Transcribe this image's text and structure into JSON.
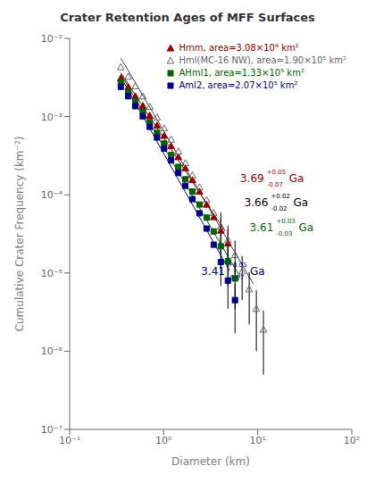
{
  "chart_data": {
    "type": "scatter",
    "title": "Crater Retention Ages of MFF Surfaces",
    "x_label": "Diameter (km)",
    "y_label": "Cumulative Crater Frequency (km⁻²)",
    "log": true,
    "grid": false,
    "legend": "upper right",
    "xlim": [
      0.1,
      100
    ],
    "ylim": [
      1e-07,
      0.01
    ],
    "xticks": [
      {
        "value": 0.1,
        "label": "10⁻¹"
      },
      {
        "value": 1,
        "label": "10⁰"
      },
      {
        "value": 10,
        "label": "10¹"
      },
      {
        "value": 100,
        "label": "10²"
      }
    ],
    "yticks": [
      {
        "value": 1e-07,
        "label": "10⁻⁷"
      },
      {
        "value": 1e-06,
        "label": "10⁻⁶"
      },
      {
        "value": 1e-05,
        "label": "10⁻⁵"
      },
      {
        "value": 0.0001,
        "label": "10⁻⁴"
      },
      {
        "value": 0.001,
        "label": "10⁻³"
      },
      {
        "value": 0.01,
        "label": "10⁻²"
      }
    ],
    "series": [
      {
        "name": "Hmm, area=3.08×10⁴ km²",
        "color": "#990000",
        "marker": "triangle",
        "x": [
          0.35,
          0.42,
          0.5,
          0.6,
          0.71,
          0.85,
          1.01,
          1.2,
          1.43,
          1.7,
          2.02,
          2.4,
          2.86,
          3.4,
          4.05,
          4.82
        ],
        "values": [
          0.0031,
          0.0024,
          0.00182,
          0.00138,
          0.00103,
          0.00077,
          0.00057,
          0.00042,
          0.000305,
          0.00022,
          0.000155,
          0.00011,
          7.5e-05,
          5.2e-05,
          3.5e-05,
          2.4e-05
        ],
        "error_low": [
          null,
          null,
          null,
          null,
          null,
          null,
          null,
          null,
          null,
          null,
          null,
          null,
          null,
          null,
          1.7e-05,
          1.2e-05
        ],
        "error_high": [
          null,
          null,
          null,
          null,
          null,
          null,
          null,
          null,
          null,
          null,
          null,
          null,
          null,
          null,
          1.7e-05,
          1.2e-05
        ],
        "fit": {
          "x": [
            0.35,
            4.5
          ],
          "y": [
            0.003626,
            3.406e-05
          ],
          "color": "#990000"
        },
        "annotation": {
          "text": "3.69",
          "sup": "+0.05",
          "sub": "-0.07",
          "unit": "Ga",
          "x": 6.5,
          "y": 0.00016,
          "color": "#990000"
        }
      },
      {
        "name": "Hml(MC-16 NW), area=1.90×10⁵ km²",
        "color": "#666666",
        "marker": "triangle-open",
        "x": [
          0.35,
          0.42,
          0.5,
          0.6,
          0.71,
          0.85,
          1.01,
          1.2,
          1.43,
          1.7,
          2.02,
          2.4,
          2.86,
          3.4,
          4.05,
          4.82,
          5.73,
          6.82,
          8.12,
          9.67,
          11.5,
          13.68,
          16.27
        ],
        "values": [
          0.0043,
          0.00325,
          0.00245,
          0.00182,
          0.00134,
          0.00098,
          0.00071,
          0.00051,
          0.00036,
          0.000255,
          0.000178,
          0.000125,
          8.6e-05,
          5.9e-05,
          3.95e-05,
          2.65e-05,
          1.7e-05,
          1.05e-05,
          6.2e-06,
          3.5e-06,
          1.9e-06,
          null,
          null
        ],
        "error_low": [
          null,
          null,
          null,
          null,
          null,
          null,
          null,
          null,
          null,
          null,
          null,
          null,
          null,
          null,
          2e-05,
          1.4e-05,
          9e-06,
          6e-06,
          4e-06,
          2.5e-06,
          1.4e-06,
          null,
          null
        ],
        "error_high": [
          null,
          null,
          null,
          null,
          null,
          null,
          null,
          null,
          null,
          null,
          null,
          null,
          null,
          null,
          2e-05,
          1.4e-05,
          9e-06,
          6e-06,
          4e-06,
          2.5e-06,
          1.4e-06,
          null,
          null
        ],
        "fit": {
          "x": [
            0.35,
            9.0
          ],
          "y": [
            0.005629,
            7.217e-06
          ],
          "color": "#444444"
        },
        "annotation": {
          "text": "3.66",
          "sup": "+0.02",
          "sub": "-0.02",
          "unit": "Ga",
          "x": 7.2,
          "y": 8e-05,
          "color": "#000000"
        }
      },
      {
        "name": "AHml1, area=1.33×10⁵ km²",
        "color": "#006400",
        "marker": "square",
        "x": [
          0.35,
          0.42,
          0.5,
          0.6,
          0.71,
          0.85,
          1.01,
          1.2,
          1.43,
          1.7,
          2.02,
          2.4,
          2.86,
          3.4,
          4.05,
          4.82,
          5.73,
          6.82,
          8.12,
          9.67,
          11.5
        ],
        "values": [
          0.00275,
          0.00208,
          0.00156,
          0.00116,
          0.00085,
          0.00062,
          0.000452,
          0.000322,
          0.000227,
          0.000158,
          0.00011,
          7.5e-05,
          5.1e-05,
          3.4e-05,
          2.2e-05,
          1.42e-05,
          8.5e-06,
          null,
          null,
          null,
          null
        ],
        "error_low": [
          null,
          null,
          null,
          null,
          null,
          null,
          null,
          null,
          null,
          null,
          null,
          null,
          null,
          null,
          1.1e-05,
          7.5e-06,
          5e-06,
          null,
          null,
          null,
          null
        ],
        "error_high": [
          null,
          null,
          null,
          null,
          null,
          null,
          null,
          null,
          null,
          null,
          null,
          null,
          null,
          null,
          1.1e-05,
          7.5e-06,
          5e-06,
          null,
          null,
          null,
          null
        ],
        "fit": {
          "x": [
            0.35,
            6.5
          ],
          "y": [
            0.003498,
            8.867e-06
          ],
          "color": "#006400"
        },
        "annotation": {
          "text": "3.61",
          "sup": "+0.03",
          "sub": "-0.03",
          "unit": "Ga",
          "x": 8.2,
          "y": 3.8e-05,
          "color": "#006400"
        }
      },
      {
        "name": "Aml2, area=2.07×10⁵ km²",
        "color": "#00008B",
        "marker": "square",
        "x": [
          0.35,
          0.42,
          0.5,
          0.6,
          0.71,
          0.85,
          1.01,
          1.2,
          1.43,
          1.7,
          2.02,
          2.4,
          2.86,
          3.4,
          4.05,
          4.82,
          5.73,
          6.82
        ],
        "values": [
          0.0024,
          0.00182,
          0.00136,
          0.00101,
          0.00074,
          0.00054,
          0.00039,
          0.000275,
          0.00019,
          0.00013,
          8.8e-05,
          5.8e-05,
          3.7e-05,
          2.3e-05,
          1.38e-05,
          8e-06,
          4.5e-06,
          null
        ],
        "error_low": [
          null,
          null,
          null,
          null,
          null,
          null,
          null,
          null,
          null,
          null,
          null,
          null,
          null,
          null,
          7e-06,
          4.5e-06,
          2.8e-06,
          null
        ],
        "error_high": [
          null,
          null,
          null,
          null,
          null,
          null,
          null,
          null,
          null,
          null,
          null,
          null,
          null,
          null,
          7e-06,
          4.5e-06,
          2.8e-06,
          null
        ],
        "fit": {
          "x": [
            0.35,
            5.0
          ],
          "y": [
            0.003212,
            1.073e-05
          ],
          "color": "#00008B"
        },
        "annotation": {
          "text": "3.41",
          "sup": "+0.05",
          "sub": "-0.07",
          "unit": "Ga",
          "x": 2.5,
          "y": 1.05e-05,
          "color": "#00008B"
        }
      }
    ]
  }
}
